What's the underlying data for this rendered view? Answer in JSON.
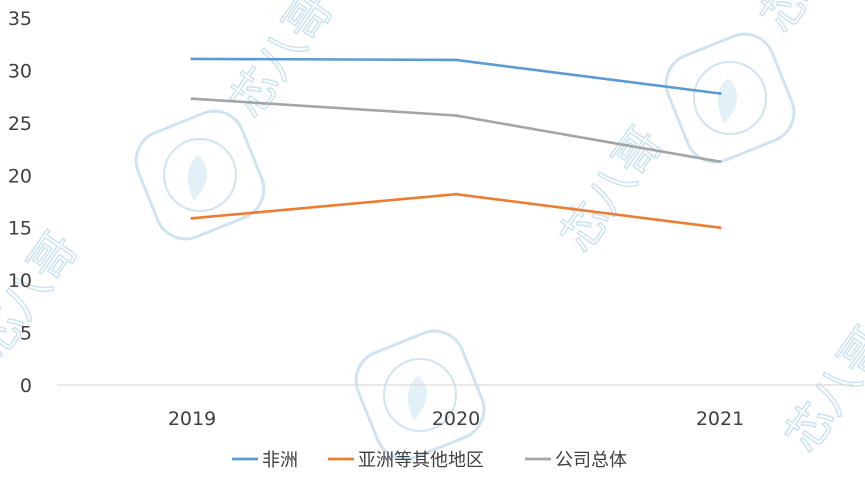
{
  "watermark": {
    "text": "芯八哥",
    "color": "#c9e2f0"
  },
  "chart_data": {
    "type": "line",
    "title": "",
    "xlabel": "",
    "ylabel": "",
    "categories": [
      "2019",
      "2020",
      "2021"
    ],
    "ylim": [
      0,
      35
    ],
    "yticks": [
      0,
      5,
      10,
      15,
      20,
      25,
      30,
      35
    ],
    "grid": false,
    "legend_position": "bottom",
    "series": [
      {
        "name": "非洲",
        "color": "#5b9bd5",
        "values": [
          31.1,
          31.0,
          27.8
        ]
      },
      {
        "name": "亚洲等其他地区",
        "color": "#ed7d31",
        "values": [
          15.9,
          18.2,
          15.0
        ]
      },
      {
        "name": "公司总体",
        "color": "#a5a5a5",
        "values": [
          27.3,
          25.7,
          21.3
        ]
      }
    ]
  }
}
